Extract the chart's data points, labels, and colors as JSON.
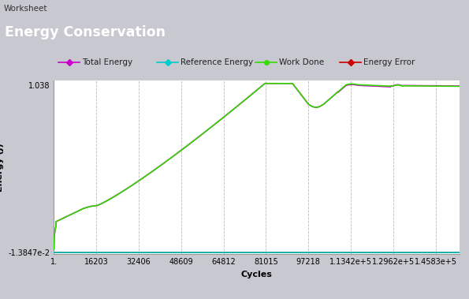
{
  "title": "Energy Conservation",
  "window_title": "Worksheet",
  "xlabel": "Cycles",
  "ylabel": "Energy (J)",
  "ytick_vals": [
    -0.013847,
    1.038
  ],
  "ytick_labels": [
    "-1.3847e-2",
    "1.038"
  ],
  "xticks": [
    1,
    16203,
    32406,
    48609,
    64812,
    81015,
    97218,
    113420,
    129620,
    145830
  ],
  "xtick_labels": [
    "1.",
    "16203",
    "32406",
    "48609",
    "64812",
    "81015",
    "97218",
    "1.1342e+5",
    "1.2962e+5",
    "1.4583e+5"
  ],
  "xmin": 1,
  "xmax": 155000,
  "ymin": -0.024,
  "ymax": 1.065,
  "legend_labels": [
    "Total Energy",
    "Reference Energy",
    "Work Done",
    "Energy Error"
  ],
  "color_total": "#cc00cc",
  "color_ref": "#00cccc",
  "color_work": "#33dd00",
  "color_error": "#cc0000",
  "bg_outer": "#c8c8d0",
  "bg_title_bar": "#a0a8b0",
  "bg_window_bar": "#b8c8dc",
  "bg_plot": "#ffffff",
  "grid_color": "#aaaaaa"
}
